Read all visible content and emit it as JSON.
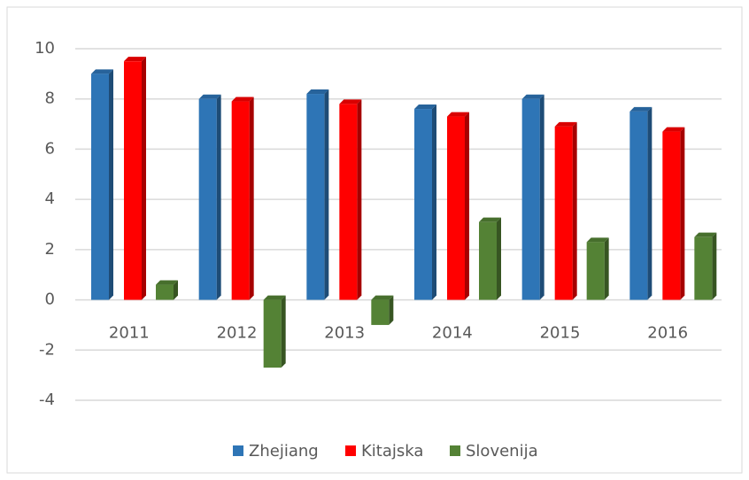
{
  "chart_data": {
    "type": "bar",
    "categories": [
      "2011",
      "2012",
      "2013",
      "2014",
      "2015",
      "2016"
    ],
    "series": [
      {
        "name": "Zhejiang",
        "color": "#2e75b6",
        "values": [
          9.0,
          8.0,
          8.2,
          7.6,
          8.0,
          7.5
        ]
      },
      {
        "name": "Kitajska",
        "color": "#ff0000",
        "values": [
          9.5,
          7.9,
          7.8,
          7.3,
          6.9,
          6.7
        ]
      },
      {
        "name": "Slovenija",
        "color": "#548235",
        "values": [
          0.6,
          -2.7,
          -1.0,
          3.1,
          2.3,
          2.5
        ]
      }
    ],
    "ylim": [
      -4,
      10
    ],
    "yticks": [
      -4,
      -2,
      0,
      2,
      4,
      6,
      8,
      10
    ],
    "grid": true,
    "legend": "bottom"
  }
}
